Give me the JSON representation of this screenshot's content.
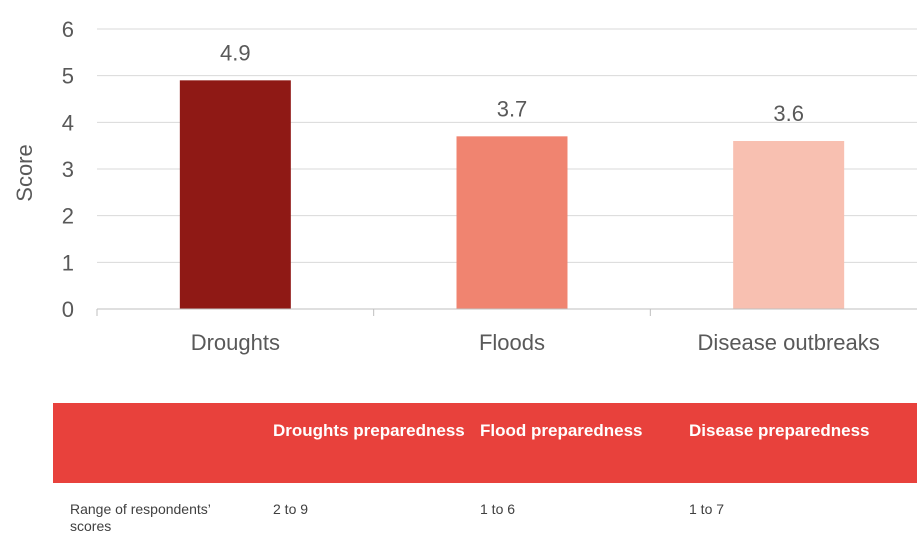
{
  "chart_data": {
    "type": "bar",
    "categories": [
      "Droughts",
      "Floods",
      "Disease outbreaks"
    ],
    "values": [
      4.9,
      3.7,
      3.6
    ],
    "value_labels": [
      "4.9",
      "3.7",
      "3.6"
    ],
    "bar_colors": [
      "#8f1915",
      "#f08470",
      "#f8c0b1"
    ],
    "ylabel": "Score",
    "xlabel": "",
    "ylim": [
      0,
      6
    ],
    "yticks": [
      "0",
      "1",
      "2",
      "3",
      "4",
      "5",
      "6"
    ],
    "grid": true,
    "legend": "none"
  },
  "table": {
    "header_color": "#e8413c",
    "headers": [
      "Droughts preparedness",
      "Flood preparedness",
      "Disease preparedness"
    ],
    "row_label": "Range of respondents’ scores",
    "values": [
      "2 to 9",
      "1 to 6",
      "1 to 7"
    ]
  }
}
